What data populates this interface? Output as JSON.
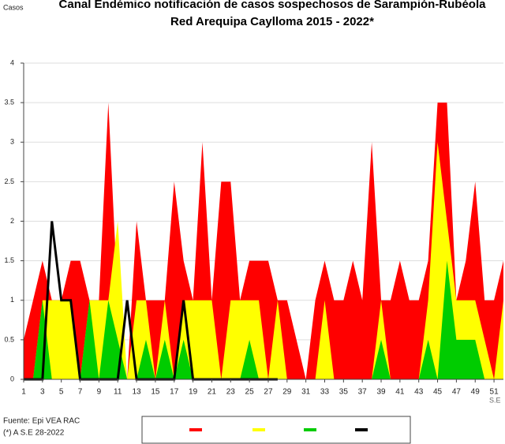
{
  "chart_data": {
    "type": "area",
    "title": "Canal Endémico notificación de casos sospechosos de Sarampión-Rubéola",
    "subtitle": "Red Arequipa Caylloma 2015 - 2022*",
    "y_label": "Casos",
    "x_label": "S.E",
    "source": "Fuente: Epi VEA RAC",
    "note": "(*) A S.E 28-2022",
    "x": [
      1,
      2,
      3,
      4,
      5,
      6,
      7,
      8,
      9,
      10,
      11,
      12,
      13,
      14,
      15,
      16,
      17,
      18,
      19,
      20,
      21,
      22,
      23,
      24,
      25,
      26,
      27,
      28,
      29,
      30,
      31,
      32,
      33,
      34,
      35,
      36,
      37,
      38,
      39,
      40,
      41,
      42,
      43,
      44,
      45,
      46,
      47,
      48,
      49,
      50,
      51,
      52
    ],
    "xlim": [
      1,
      52
    ],
    "xticks": [
      1,
      3,
      5,
      7,
      9,
      11,
      13,
      15,
      17,
      19,
      21,
      23,
      25,
      27,
      29,
      31,
      33,
      35,
      37,
      39,
      41,
      43,
      45,
      47,
      49,
      51
    ],
    "ylim": [
      0,
      4
    ],
    "yticks": [
      0,
      0.5,
      1,
      1.5,
      2,
      2.5,
      3,
      3.5,
      4
    ],
    "grid": true,
    "series": [
      {
        "color": "#ff0000",
        "kind": "area",
        "values": [
          0.5,
          1,
          1.5,
          1,
          1,
          1.5,
          1.5,
          1,
          1,
          3.5,
          1,
          0,
          2,
          1,
          1,
          1,
          2.5,
          1.5,
          1,
          3,
          1,
          2.5,
          2.5,
          1,
          1.5,
          1.5,
          1.5,
          1,
          1,
          0.5,
          0,
          1,
          1.5,
          1,
          1,
          1.5,
          1,
          3,
          1,
          1,
          1.5,
          1,
          1,
          1.5,
          3.5,
          3.5,
          1,
          1.5,
          2.5,
          1,
          1,
          1.5
        ]
      },
      {
        "color": "#ffff00",
        "kind": "area",
        "values": [
          0,
          0,
          1,
          1,
          1,
          1,
          0,
          1,
          1,
          1,
          2,
          0,
          1,
          1,
          0,
          1,
          0,
          1,
          1,
          1,
          1,
          0,
          1,
          1,
          1,
          1,
          0,
          1,
          0,
          0,
          0,
          0,
          1,
          0,
          0,
          0,
          0,
          0,
          1,
          0,
          0,
          0,
          0,
          1,
          3,
          2,
          1,
          1,
          1,
          0.5,
          0,
          1
        ]
      },
      {
        "color": "#00cc00",
        "kind": "area",
        "values": [
          0,
          0,
          1,
          0,
          0,
          0,
          0,
          1,
          0,
          1,
          0.5,
          0,
          0,
          0.5,
          0,
          0.5,
          0,
          0.5,
          0,
          0,
          0,
          0,
          0,
          0,
          0.5,
          0,
          0,
          0,
          0,
          0,
          0,
          0,
          0,
          0,
          0,
          0,
          0,
          0,
          0.5,
          0,
          0,
          0,
          0,
          0.5,
          0,
          1.5,
          0.5,
          0.5,
          0.5,
          0,
          0,
          0
        ]
      },
      {
        "color": "#000000",
        "kind": "line",
        "values": [
          0,
          0,
          0,
          2,
          1,
          1,
          0,
          0,
          0,
          0,
          0,
          1,
          0,
          0,
          0,
          0,
          0,
          1,
          0,
          0,
          0,
          0,
          0,
          0,
          0,
          0,
          0,
          0,
          null,
          null,
          null,
          null,
          null,
          null,
          null,
          null,
          null,
          null,
          null,
          null,
          null,
          null,
          null,
          null,
          null,
          null,
          null,
          null,
          null,
          null,
          null,
          null
        ]
      }
    ]
  }
}
